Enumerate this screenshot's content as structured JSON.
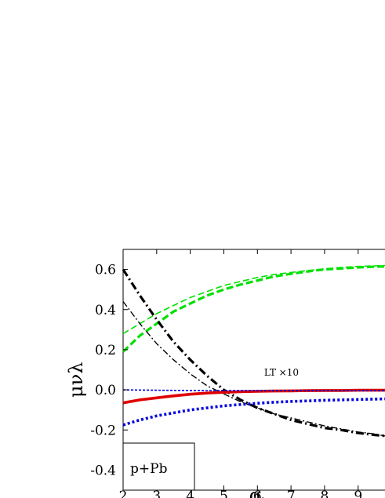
{
  "chart_data": {
    "type": "line",
    "xlabel": "q_t",
    "ylabel": "μνλ",
    "xlim": [
      2,
      9.8
    ],
    "ylim": [
      -0.5,
      0.7
    ],
    "xticks": [
      2,
      3,
      4,
      5,
      6,
      7,
      8,
      9
    ],
    "yticks": [
      0.6,
      0.4,
      0.2,
      0.0,
      -0.2,
      -0.4
    ],
    "ytick_labels": [
      "0.6",
      "0.4",
      "0.2",
      "0.0",
      "-0.2",
      "-0.4"
    ],
    "grid": false,
    "annotations": [
      {
        "text": "LT ×10",
        "x": 6.2,
        "y": 0.07
      }
    ],
    "legend_box": {
      "text": "p+Pb",
      "placement": "bottom-left"
    },
    "series": [
      {
        "color": "#00e000",
        "style": "dashed-thin",
        "x": [
          2,
          2.5,
          3,
          3.5,
          4,
          4.5,
          5,
          5.5,
          6,
          6.5,
          7,
          7.5,
          8,
          8.5,
          9,
          9.5,
          9.8
        ],
        "y": [
          0.28,
          0.33,
          0.38,
          0.42,
          0.46,
          0.49,
          0.52,
          0.54,
          0.56,
          0.575,
          0.585,
          0.595,
          0.603,
          0.61,
          0.615,
          0.618,
          0.62
        ]
      },
      {
        "color": "#00e000",
        "style": "dashed-thick",
        "x": [
          2,
          2.5,
          3,
          3.5,
          4,
          4.5,
          5,
          5.5,
          6,
          6.5,
          7,
          7.5,
          8,
          8.5,
          9,
          9.5,
          9.8
        ],
        "y": [
          0.19,
          0.27,
          0.33,
          0.39,
          0.43,
          0.47,
          0.5,
          0.525,
          0.545,
          0.565,
          0.578,
          0.59,
          0.6,
          0.605,
          0.61,
          0.614,
          0.615
        ]
      },
      {
        "color": "#000000",
        "style": "dashdot-thick",
        "x": [
          2,
          2.5,
          3,
          3.5,
          4,
          4.5,
          5,
          5.5,
          6,
          6.5,
          7,
          7.5,
          8,
          8.5,
          9,
          9.5,
          9.8
        ],
        "y": [
          0.6,
          0.47,
          0.35,
          0.24,
          0.15,
          0.07,
          0.0,
          -0.05,
          -0.09,
          -0.12,
          -0.15,
          -0.17,
          -0.19,
          -0.2,
          -0.215,
          -0.225,
          -0.23
        ]
      },
      {
        "color": "#000000",
        "style": "dashdot-thin",
        "x": [
          2,
          2.5,
          3,
          3.5,
          4,
          4.5,
          5,
          5.5,
          6,
          6.5,
          7,
          7.5,
          8,
          8.5,
          9,
          9.5,
          9.8
        ],
        "y": [
          0.44,
          0.33,
          0.23,
          0.15,
          0.08,
          0.02,
          -0.02,
          -0.06,
          -0.09,
          -0.12,
          -0.14,
          -0.16,
          -0.18,
          -0.195,
          -0.21,
          -0.22,
          -0.23
        ]
      },
      {
        "color": "#e00000",
        "style": "solid-thick",
        "x": [
          2,
          2.5,
          3,
          3.5,
          4,
          4.5,
          5,
          5.5,
          6,
          6.5,
          7,
          7.5,
          8,
          8.5,
          9,
          9.5,
          9.8
        ],
        "y": [
          -0.065,
          -0.05,
          -0.04,
          -0.03,
          -0.022,
          -0.016,
          -0.012,
          -0.009,
          -0.007,
          -0.006,
          -0.005,
          -0.004,
          -0.003,
          -0.003,
          -0.002,
          -0.002,
          -0.002
        ]
      },
      {
        "color": "#0000e0",
        "style": "dotted-thin",
        "x": [
          2,
          3,
          4,
          5,
          6,
          7,
          8,
          9,
          9.8
        ],
        "y": [
          0.0,
          -0.002,
          -0.003,
          -0.004,
          -0.004,
          -0.004,
          -0.004,
          -0.004,
          -0.004
        ]
      },
      {
        "color": "#0000e0",
        "style": "dotted-thick",
        "x": [
          2,
          2.5,
          3,
          3.5,
          4,
          4.5,
          5,
          5.5,
          6,
          6.5,
          7,
          7.5,
          8,
          8.5,
          9,
          9.5,
          9.8
        ],
        "y": [
          -0.175,
          -0.15,
          -0.13,
          -0.115,
          -0.1,
          -0.09,
          -0.08,
          -0.073,
          -0.067,
          -0.062,
          -0.058,
          -0.055,
          -0.052,
          -0.05,
          -0.048,
          -0.046,
          -0.045
        ]
      }
    ]
  }
}
